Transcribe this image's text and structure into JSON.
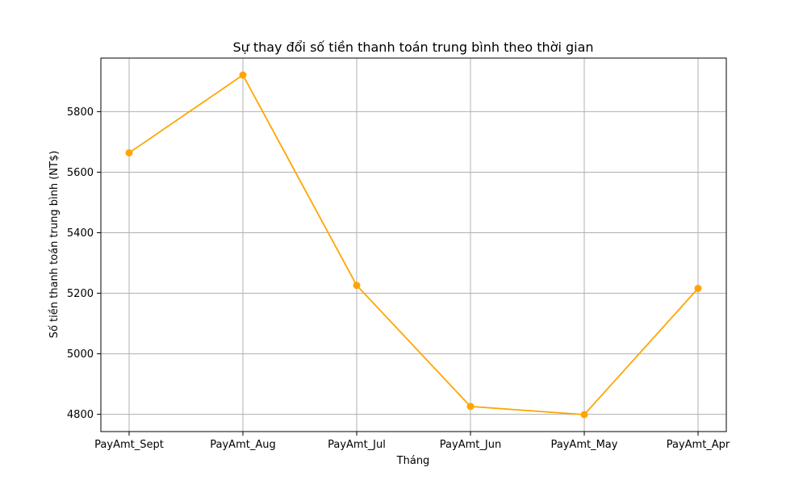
{
  "chart_data": {
    "type": "line",
    "title": "Sự thay đổi số tiền thanh toán trung bình theo thời gian",
    "xlabel": "Tháng",
    "ylabel": "Số tiền thanh toán trung bình (NT$)",
    "categories": [
      "PayAmt_Sept",
      "PayAmt_Aug",
      "PayAmt_Jul",
      "PayAmt_Jun",
      "PayAmt_May",
      "PayAmt_Apr"
    ],
    "series": [
      {
        "values": [
          5664,
          5921,
          5226,
          4826,
          4799,
          5216
        ]
      }
    ],
    "yticks": [
      4800,
      5000,
      5200,
      5400,
      5600,
      5800
    ],
    "ylim": [
      4743,
      5977
    ],
    "grid": true,
    "marker": "circle",
    "color": "#ffa500"
  }
}
